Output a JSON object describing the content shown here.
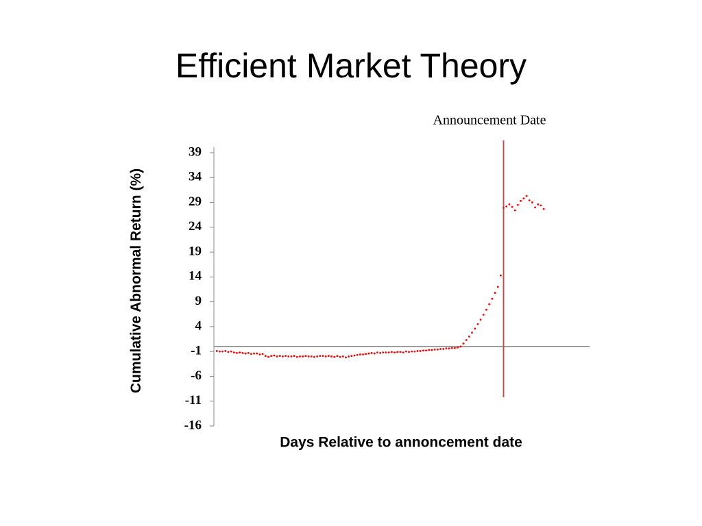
{
  "chart_data": {
    "type": "scatter",
    "title": "Efficient Market Theory",
    "xlabel": "Days Relative to annoncement date",
    "ylabel": "Cumulative Abnormal Return (%)",
    "announcement": {
      "label": "Announcement Date",
      "x": 0,
      "color": "#c0504d"
    },
    "color": "#ff0000",
    "zero_line": true,
    "xlim": [
      -101,
      30
    ],
    "ylim": [
      -16,
      39
    ],
    "yticks": [
      -16,
      -11,
      -6,
      -1,
      4,
      9,
      14,
      19,
      24,
      29,
      34,
      39
    ],
    "x": [
      -100,
      -99,
      -98,
      -97,
      -96,
      -95,
      -94,
      -93,
      -92,
      -91,
      -90,
      -89,
      -88,
      -87,
      -86,
      -85,
      -84,
      -83,
      -82,
      -81,
      -80,
      -79,
      -78,
      -77,
      -76,
      -75,
      -74,
      -73,
      -72,
      -71,
      -70,
      -69,
      -68,
      -67,
      -66,
      -65,
      -64,
      -63,
      -62,
      -61,
      -60,
      -59,
      -58,
      -57,
      -56,
      -55,
      -54,
      -53,
      -52,
      -51,
      -50,
      -49,
      -48,
      -47,
      -46,
      -45,
      -44,
      -43,
      -42,
      -41,
      -40,
      -39,
      -38,
      -37,
      -36,
      -35,
      -34,
      -33,
      -32,
      -31,
      -30,
      -29,
      -28,
      -27,
      -26,
      -25,
      -24,
      -23,
      -22,
      -21,
      -20,
      -19,
      -18,
      -17,
      -16,
      -15,
      -14,
      -13,
      -12,
      -11,
      -10,
      -9,
      -8,
      -7,
      -6,
      -5,
      -4,
      -3,
      -2,
      -1,
      0,
      1,
      2,
      3,
      4,
      5,
      6,
      7,
      8,
      9,
      10,
      11,
      12,
      13,
      14
    ],
    "values": [
      -0.9,
      -1.0,
      -1.0,
      -0.9,
      -1.1,
      -1.0,
      -1.2,
      -1.3,
      -1.2,
      -1.3,
      -1.4,
      -1.3,
      -1.5,
      -1.4,
      -1.4,
      -1.6,
      -1.5,
      -1.9,
      -2.1,
      -1.9,
      -1.8,
      -2.0,
      -1.9,
      -2.0,
      -1.9,
      -2.0,
      -2.0,
      -1.9,
      -2.1,
      -2.0,
      -2.0,
      -1.9,
      -2.0,
      -2.0,
      -2.1,
      -2.0,
      -1.9,
      -1.9,
      -2.0,
      -1.9,
      -2.0,
      -2.1,
      -1.9,
      -2.1,
      -2.0,
      -2.2,
      -2.0,
      -1.9,
      -1.8,
      -1.7,
      -1.6,
      -1.6,
      -1.5,
      -1.4,
      -1.3,
      -1.4,
      -1.2,
      -1.3,
      -1.2,
      -1.2,
      -1.2,
      -1.1,
      -1.2,
      -1.1,
      -1.1,
      -1.2,
      -1.0,
      -1.1,
      -1.0,
      -1.0,
      -0.9,
      -0.9,
      -0.8,
      -0.8,
      -0.7,
      -0.7,
      -0.6,
      -0.6,
      -0.5,
      -0.5,
      -0.4,
      -0.4,
      -0.3,
      -0.3,
      -0.2,
      0.0,
      0.6,
      1.3,
      2.0,
      2.8,
      3.6,
      4.5,
      5.4,
      6.4,
      7.4,
      8.5,
      9.6,
      10.8,
      12.0,
      14.3,
      27.9,
      28.2,
      28.6,
      28.1,
      27.4,
      28.5,
      29.3,
      29.8,
      30.3,
      29.4,
      29.0,
      28.0,
      28.6,
      28.4,
      27.7
    ]
  }
}
